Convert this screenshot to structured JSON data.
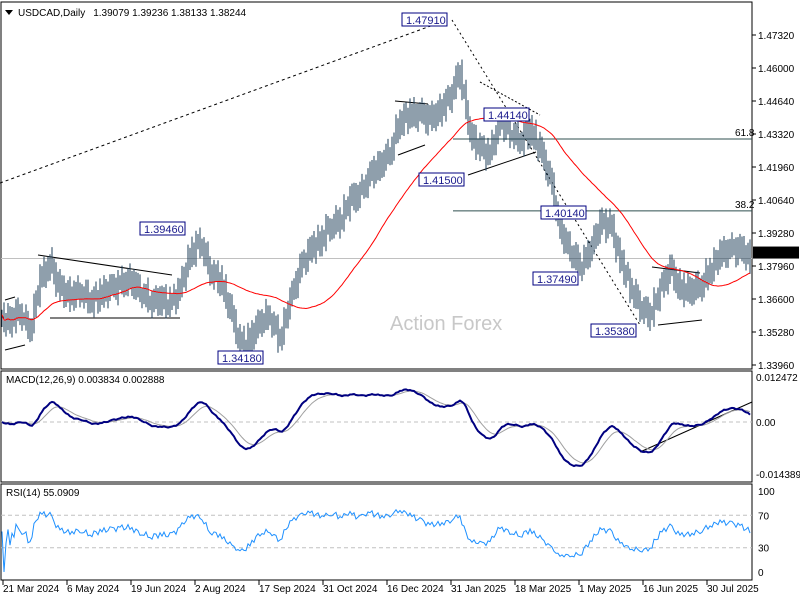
{
  "header": {
    "symbol": "USDCAD,Daily",
    "ohlc": "1.39079 1.39236 1.38133 1.38244"
  },
  "watermark": "Action Forex",
  "colors": {
    "bars": "#1f3f5a",
    "ma": "#ff0000",
    "macd": "#000080",
    "signal": "#a0a0a0",
    "rsi": "#1e90ff",
    "label_border": "#000080",
    "current_price_bg": "#000000"
  },
  "chart_data": [
    {
      "type": "bar",
      "title": "USDCAD,Daily",
      "current_price": "1.38244",
      "y_ticks": [
        "1.47320",
        "1.46000",
        "1.44640",
        "1.43320",
        "1.41960",
        "1.40640",
        "1.39280",
        "1.37960",
        "1.36600",
        "1.35280",
        "1.33960"
      ],
      "ylim": [
        1.3396,
        1.4832
      ],
      "x_ticks": [
        "21 Mar 2024",
        "6 May 2024",
        "19 Jun 2024",
        "2 Aug 2024",
        "17 Sep 2024",
        "31 Oct 2024",
        "16 Dec 2024",
        "31 Jan 2025",
        "18 Mar 2025",
        "1 May 2025",
        "16 Jun 2025",
        "30 Jul 2025"
      ],
      "weekly_close": [
        1.3575,
        1.3615,
        1.3534,
        1.3737,
        1.3798,
        1.3697,
        1.3676,
        1.3697,
        1.3656,
        1.3676,
        1.3697,
        1.3717,
        1.3737,
        1.3697,
        1.3656,
        1.3656,
        1.3636,
        1.3697,
        1.3839,
        1.39,
        1.3778,
        1.3737,
        1.3615,
        1.3473,
        1.3494,
        1.3575,
        1.3595,
        1.3494,
        1.3656,
        1.3778,
        1.3859,
        1.39,
        1.3961,
        1.3981,
        1.4062,
        1.4082,
        1.4164,
        1.4204,
        1.4265,
        1.4387,
        1.4407,
        1.4407,
        1.4387,
        1.4428,
        1.4488,
        1.459,
        1.4326,
        1.4265,
        1.4245,
        1.4387,
        1.4346,
        1.4306,
        1.4346,
        1.4265,
        1.4143,
        1.394,
        1.3859,
        1.3798,
        1.3859,
        1.3961,
        1.3961,
        1.3819,
        1.3717,
        1.3636,
        1.3595,
        1.3697,
        1.3778,
        1.3697,
        1.3697,
        1.3717,
        1.3778,
        1.3839,
        1.3859,
        1.3859,
        1.3824
      ],
      "price_labels": [
        {
          "text": "1.47910",
          "value": 1.4791
        },
        {
          "text": "1.39460",
          "value": 1.3946
        },
        {
          "text": "1.34180",
          "value": 1.3418
        },
        {
          "text": "1.41500",
          "value": 1.415
        },
        {
          "text": "1.44140",
          "value": 1.4414
        },
        {
          "text": "1.40140",
          "value": 1.4014
        },
        {
          "text": "1.37490",
          "value": 1.3749
        },
        {
          "text": "1.35380",
          "value": 1.3538
        }
      ],
      "fibonacci": [
        {
          "level": "61.8",
          "value": 1.431
        },
        {
          "level": "38.2",
          "value": 1.4018
        }
      ],
      "moving_average": "red"
    },
    {
      "type": "line",
      "title": "MACD(12,26,9) 0.003834 0.002888",
      "y_ticks": [
        "0.012472",
        "0.00",
        "-0.014389"
      ],
      "ylim": [
        -0.014389,
        0.012472
      ]
    },
    {
      "type": "line",
      "title": "RSI(14) 55.0909",
      "y_ticks": [
        "100",
        "70",
        "30",
        "0"
      ],
      "ylim": [
        0,
        100
      ]
    }
  ]
}
